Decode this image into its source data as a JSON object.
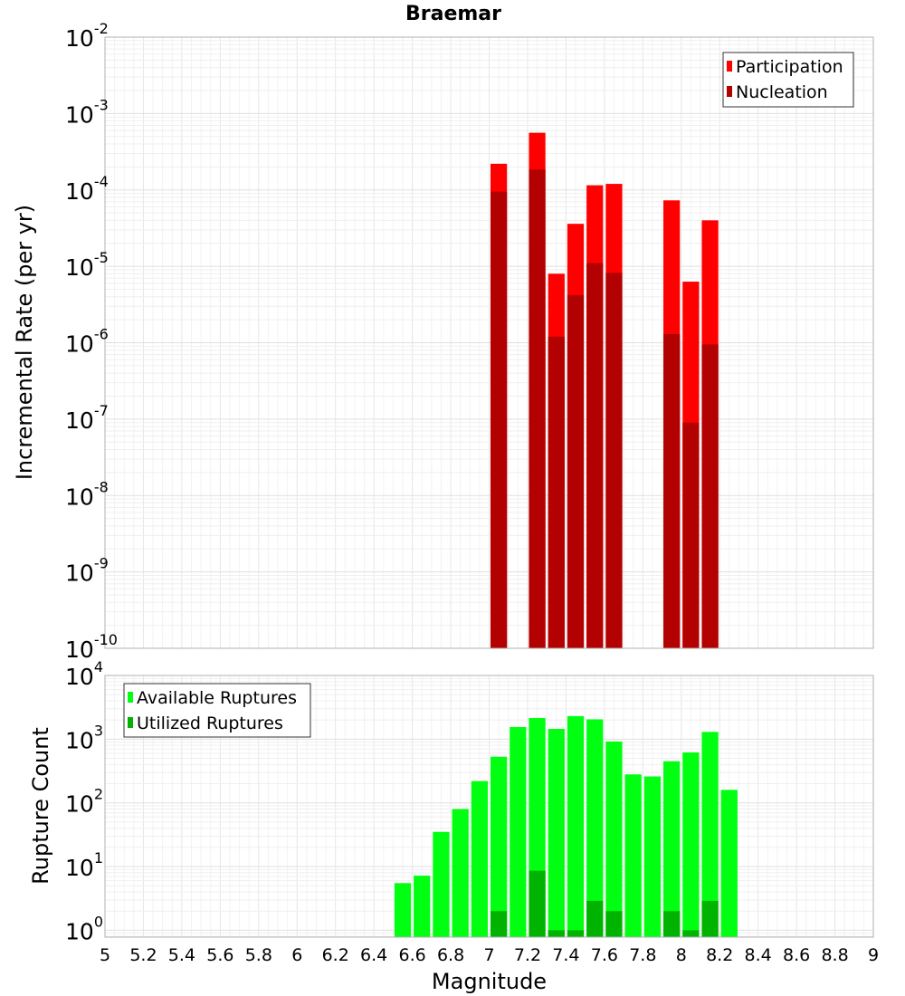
{
  "chart_data": [
    {
      "type": "bar",
      "title": "Braemar",
      "ylabel": "Incremental Rate (per yr)",
      "xlabel": "",
      "yscale": "log",
      "ylim": [
        1e-10,
        0.01
      ],
      "xlim": [
        5,
        9
      ],
      "legend_position": "top-right",
      "bar_width": 0.1,
      "ytick_base": "10",
      "yticks": [
        {
          "value": 0.01,
          "exp": "-2"
        },
        {
          "value": 0.001,
          "exp": "-3"
        },
        {
          "value": 0.0001,
          "exp": "-4"
        },
        {
          "value": 1e-05,
          "exp": "-5"
        },
        {
          "value": 1e-06,
          "exp": "-6"
        },
        {
          "value": 1e-07,
          "exp": "-7"
        },
        {
          "value": 1e-08,
          "exp": "-8"
        },
        {
          "value": 1e-09,
          "exp": "-9"
        },
        {
          "value": 1e-10,
          "exp": "-10"
        }
      ],
      "series": [
        {
          "name": "Participation",
          "color": "#ff0000",
          "x": [
            7.05,
            7.25,
            7.35,
            7.45,
            7.55,
            7.65,
            7.95,
            8.05,
            8.15
          ],
          "values": [
            0.00022,
            0.00056,
            8e-06,
            3.6e-05,
            0.000115,
            0.00012,
            7.3e-05,
            6.3e-06,
            4e-05
          ]
        },
        {
          "name": "Nucleation",
          "color": "#b30000",
          "x": [
            7.05,
            7.25,
            7.35,
            7.45,
            7.55,
            7.65,
            7.95,
            8.05,
            8.15
          ],
          "values": [
            9.5e-05,
            0.000185,
            1.2e-06,
            4.2e-06,
            1.1e-05,
            8.2e-06,
            1.3e-06,
            9e-08,
            9.5e-07
          ]
        }
      ]
    },
    {
      "type": "bar",
      "title": "",
      "ylabel": "Rupture Count",
      "xlabel": "Magnitude",
      "yscale": "log",
      "ylim": [
        0.78,
        10000
      ],
      "xlim": [
        5,
        9
      ],
      "legend_position": "top-left",
      "bar_width": 0.1,
      "ytick_base": "10",
      "yticks": [
        {
          "value": 1,
          "exp": "0"
        },
        {
          "value": 10,
          "exp": "1"
        },
        {
          "value": 100,
          "exp": "2"
        },
        {
          "value": 1000,
          "exp": "3"
        },
        {
          "value": 10000,
          "exp": "4"
        }
      ],
      "xticks": [
        "5",
        "5.2",
        "5.4",
        "5.6",
        "5.8",
        "6",
        "6.2",
        "6.4",
        "6.6",
        "6.8",
        "7",
        "7.2",
        "7.4",
        "7.6",
        "7.8",
        "8",
        "8.2",
        "8.4",
        "8.6",
        "8.8",
        "9"
      ],
      "series": [
        {
          "name": "Available Ruptures",
          "color": "#00ff11",
          "x": [
            6.55,
            6.65,
            6.75,
            6.85,
            6.95,
            7.05,
            7.15,
            7.25,
            7.35,
            7.45,
            7.55,
            7.65,
            7.75,
            7.85,
            7.95,
            8.05,
            8.15,
            8.25
          ],
          "values": [
            5.5,
            7.2,
            35,
            80,
            220,
            530,
            1550,
            2150,
            1450,
            2300,
            2050,
            920,
            280,
            260,
            450,
            620,
            1300,
            160
          ]
        },
        {
          "name": "Utilized Ruptures",
          "color": "#00b300",
          "x": [
            7.05,
            7.25,
            7.35,
            7.45,
            7.55,
            7.65,
            7.95,
            8.05,
            8.15
          ],
          "values": [
            2,
            8.6,
            1,
            1,
            2.9,
            2,
            2,
            1,
            2.9
          ]
        }
      ]
    }
  ]
}
